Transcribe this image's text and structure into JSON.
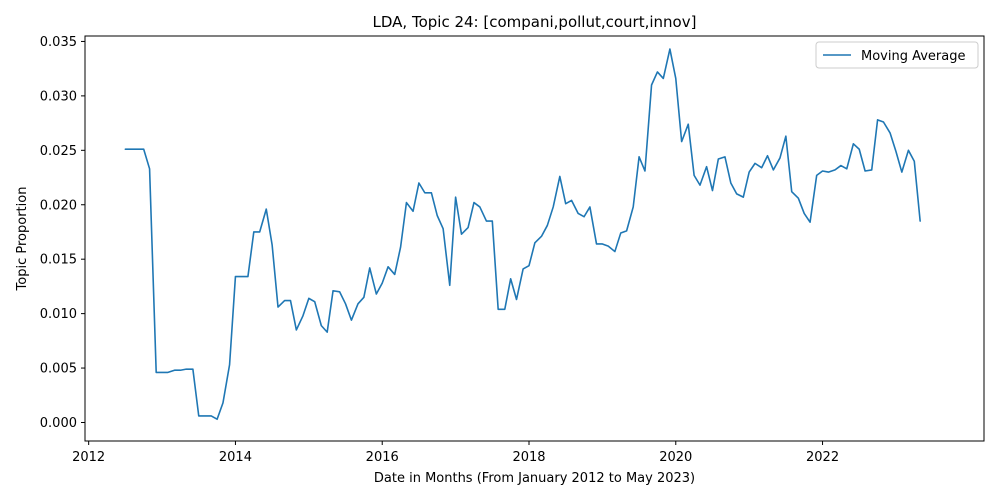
{
  "chart_data": {
    "type": "line",
    "title": "LDA, Topic 24: [compani,pollut,court,innov]",
    "xlabel": "Date in Months (From January 2012 to May 2023)",
    "ylabel": "Topic Proportion",
    "xlim": [
      2011.95,
      2024.2
    ],
    "ylim": [
      -0.0017,
      0.0355
    ],
    "x_ticks": [
      2012,
      2014,
      2016,
      2018,
      2020,
      2022
    ],
    "y_ticks": [
      0.0,
      0.005,
      0.01,
      0.015,
      0.02,
      0.025,
      0.03,
      0.035
    ],
    "y_tick_labels": [
      "0.000",
      "0.005",
      "0.010",
      "0.015",
      "0.020",
      "0.025",
      "0.030",
      "0.035"
    ],
    "grid": false,
    "legend_position": "top-right",
    "series": [
      {
        "name": "Moving Average",
        "color": "#1f77b4",
        "x": [
          2012.5,
          2012.58,
          2012.67,
          2012.75,
          2012.83,
          2012.92,
          2013.0,
          2013.08,
          2013.17,
          2013.25,
          2013.33,
          2013.42,
          2013.5,
          2013.58,
          2013.67,
          2013.75,
          2013.83,
          2013.92,
          2014.0,
          2014.08,
          2014.17,
          2014.25,
          2014.33,
          2014.42,
          2014.5,
          2014.58,
          2014.67,
          2014.75,
          2014.83,
          2014.92,
          2015.0,
          2015.08,
          2015.17,
          2015.25,
          2015.33,
          2015.42,
          2015.5,
          2015.58,
          2015.67,
          2015.75,
          2015.83,
          2015.92,
          2016.0,
          2016.08,
          2016.17,
          2016.25,
          2016.33,
          2016.42,
          2016.5,
          2016.58,
          2016.67,
          2016.75,
          2016.83,
          2016.92,
          2017.0,
          2017.08,
          2017.17,
          2017.25,
          2017.33,
          2017.42,
          2017.5,
          2017.58,
          2017.67,
          2017.75,
          2017.83,
          2017.92,
          2018.0,
          2018.08,
          2018.17,
          2018.25,
          2018.33,
          2018.42,
          2018.5,
          2018.58,
          2018.67,
          2018.75,
          2018.83,
          2018.92,
          2019.0,
          2019.08,
          2019.17,
          2019.25,
          2019.33,
          2019.42,
          2019.5,
          2019.58,
          2019.67,
          2019.75,
          2019.83,
          2019.92,
          2020.0,
          2020.08,
          2020.17,
          2020.25,
          2020.33,
          2020.42,
          2020.5,
          2020.58,
          2020.67,
          2020.75,
          2020.83,
          2020.92,
          2021.0,
          2021.08,
          2021.17,
          2021.25,
          2021.33,
          2021.42,
          2021.5,
          2021.58,
          2021.67,
          2021.75,
          2021.83,
          2021.92,
          2022.0,
          2022.08,
          2022.17,
          2022.25,
          2022.33,
          2022.42,
          2022.5,
          2022.58,
          2022.67,
          2022.75,
          2022.83,
          2022.92,
          2023.0,
          2023.08,
          2023.17,
          2023.25,
          2023.33
        ],
        "y": [
          0.0251,
          0.0251,
          0.0251,
          0.0251,
          0.0233,
          0.0046,
          0.0046,
          0.0046,
          0.0048,
          0.0048,
          0.0049,
          0.0049,
          0.0006,
          0.0006,
          0.0006,
          0.0003,
          0.0018,
          0.0053,
          0.0134,
          0.0134,
          0.0134,
          0.0175,
          0.0175,
          0.0196,
          0.0163,
          0.0106,
          0.0112,
          0.0112,
          0.0085,
          0.0098,
          0.0114,
          0.0111,
          0.0089,
          0.0083,
          0.0121,
          0.012,
          0.0109,
          0.0094,
          0.0109,
          0.0115,
          0.0142,
          0.0118,
          0.0128,
          0.0143,
          0.0136,
          0.0161,
          0.0202,
          0.0194,
          0.022,
          0.0211,
          0.0211,
          0.019,
          0.0178,
          0.0126,
          0.0207,
          0.0173,
          0.0179,
          0.0202,
          0.0198,
          0.0185,
          0.0185,
          0.0104,
          0.0104,
          0.0132,
          0.0113,
          0.0141,
          0.0144,
          0.0165,
          0.0171,
          0.0181,
          0.0198,
          0.0226,
          0.0201,
          0.0204,
          0.0192,
          0.0189,
          0.0198,
          0.0164,
          0.0164,
          0.0162,
          0.0157,
          0.0174,
          0.0176,
          0.0198,
          0.0244,
          0.0231,
          0.031,
          0.0322,
          0.0316,
          0.0343,
          0.0316,
          0.0258,
          0.0274,
          0.0227,
          0.0218,
          0.0235,
          0.0213,
          0.0242,
          0.0244,
          0.022,
          0.021,
          0.0207,
          0.023,
          0.0238,
          0.0234,
          0.0245,
          0.0232,
          0.0243,
          0.0263,
          0.0212,
          0.0206,
          0.0192,
          0.0184,
          0.0227,
          0.0231,
          0.023,
          0.0232,
          0.0236,
          0.0233,
          0.0256,
          0.0251,
          0.0231,
          0.0232,
          0.0278,
          0.0276,
          0.0266,
          0.0249,
          0.023,
          0.025,
          0.024,
          0.0185
        ]
      }
    ]
  }
}
